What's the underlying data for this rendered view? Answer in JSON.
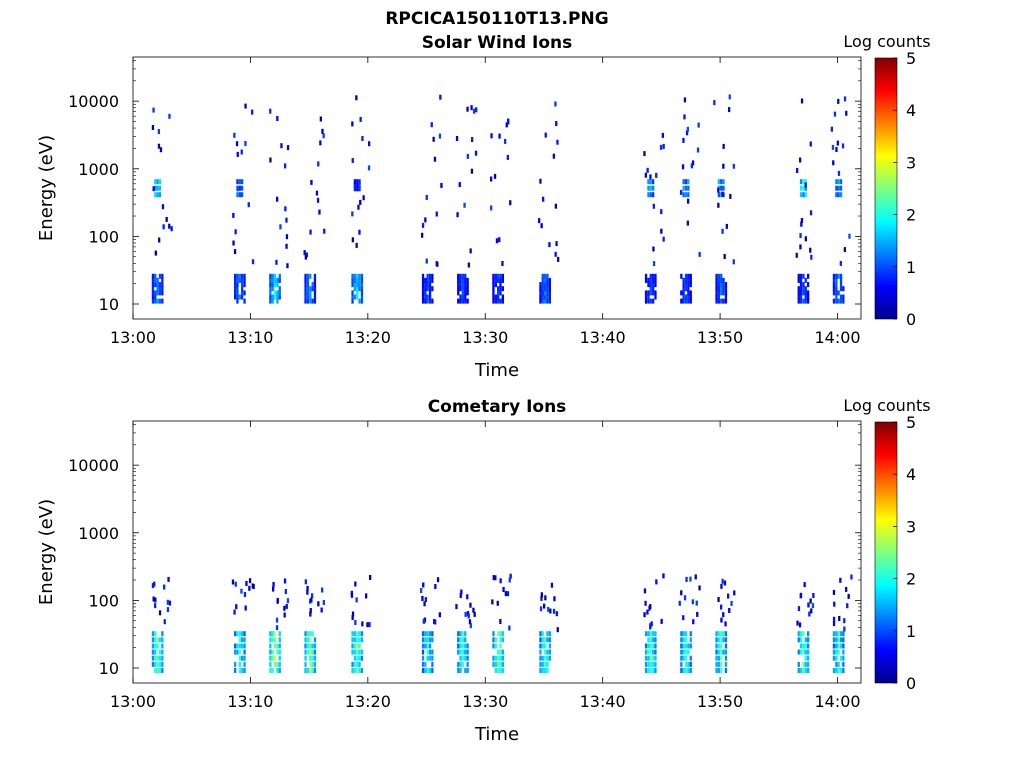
{
  "figure_title": "RPCICA150110T13.PNG",
  "chart_data": [
    {
      "type": "heatmap",
      "title": "Solar Wind Ions",
      "xlabel": "Time",
      "ylabel": "Energy (eV)",
      "yscale": "log",
      "ylim": [
        6,
        45000
      ],
      "xlim": [
        "13:00",
        "14:02"
      ],
      "x_ticks": [
        "13:00",
        "13:10",
        "13:20",
        "13:30",
        "13:40",
        "13:50",
        "14:00"
      ],
      "y_ticks": [
        "10",
        "100",
        "1000",
        "10000"
      ],
      "colorbar": {
        "label": "Log counts",
        "range": [
          0,
          5
        ],
        "ticks": [
          "0",
          "1",
          "2",
          "3",
          "4",
          "5"
        ]
      },
      "grid": false,
      "bursts": [
        {
          "t": "13:02",
          "core_eV": [
            12,
            28
          ],
          "peak_log": 1.3,
          "mid_eV": [
            450,
            700
          ],
          "mid_log": 1.8
        },
        {
          "t": "13:09",
          "core_eV": [
            12,
            28
          ],
          "peak_log": 1.2,
          "mid_eV": [
            450,
            700
          ],
          "mid_log": 1.3
        },
        {
          "t": "13:12",
          "core_eV": [
            12,
            28
          ],
          "peak_log": 1.8
        },
        {
          "t": "13:15",
          "core_eV": [
            12,
            28
          ],
          "peak_log": 1.3
        },
        {
          "t": "13:19",
          "core_eV": [
            12,
            28
          ],
          "peak_log": 1.7,
          "mid_eV": [
            550,
            700
          ],
          "mid_log": 1.0
        },
        {
          "t": "13:25",
          "core_eV": [
            12,
            28
          ],
          "peak_log": 1.0
        },
        {
          "t": "13:28",
          "core_eV": [
            12,
            28
          ],
          "peak_log": 1.0
        },
        {
          "t": "13:31",
          "core_eV": [
            12,
            28
          ],
          "peak_log": 1.0
        },
        {
          "t": "13:35",
          "core_eV": [
            12,
            28
          ],
          "peak_log": 1.2
        },
        {
          "t": "13:44",
          "core_eV": [
            12,
            28
          ],
          "peak_log": 1.0,
          "mid_eV": [
            450,
            700
          ],
          "mid_log": 1.6
        },
        {
          "t": "13:47",
          "core_eV": [
            12,
            28
          ],
          "peak_log": 1.0,
          "mid_eV": [
            450,
            700
          ],
          "mid_log": 1.5
        },
        {
          "t": "13:50",
          "core_eV": [
            12,
            28
          ],
          "peak_log": 1.1,
          "mid_eV": [
            450,
            700
          ],
          "mid_log": 1.6
        },
        {
          "t": "13:57",
          "core_eV": [
            12,
            28
          ],
          "peak_log": 1.0,
          "mid_eV": [
            450,
            700
          ],
          "mid_log": 2.0
        },
        {
          "t": "14:00",
          "core_eV": [
            12,
            28
          ],
          "peak_log": 1.3,
          "mid_eV": [
            450,
            700
          ],
          "mid_log": 1.7
        }
      ]
    },
    {
      "type": "heatmap",
      "title": "Cometary Ions",
      "xlabel": "Time",
      "ylabel": "Energy (eV)",
      "yscale": "log",
      "ylim": [
        6,
        45000
      ],
      "xlim": [
        "13:00",
        "14:02"
      ],
      "x_ticks": [
        "13:00",
        "13:10",
        "13:20",
        "13:30",
        "13:40",
        "13:50",
        "14:00"
      ],
      "y_ticks": [
        "10",
        "100",
        "1000",
        "10000"
      ],
      "colorbar": {
        "label": "Log counts",
        "range": [
          0,
          5
        ],
        "ticks": [
          "0",
          "1",
          "2",
          "3",
          "4",
          "5"
        ]
      },
      "grid": false,
      "bursts": [
        {
          "t": "13:02",
          "core_eV": [
            10,
            35
          ],
          "peak_log": 2.4
        },
        {
          "t": "13:09",
          "core_eV": [
            10,
            35
          ],
          "peak_log": 2.1
        },
        {
          "t": "13:12",
          "core_eV": [
            10,
            35
          ],
          "peak_log": 2.8
        },
        {
          "t": "13:15",
          "core_eV": [
            10,
            35
          ],
          "peak_log": 2.5
        },
        {
          "t": "13:19",
          "core_eV": [
            10,
            35
          ],
          "peak_log": 2.4
        },
        {
          "t": "13:25",
          "core_eV": [
            10,
            35
          ],
          "peak_log": 2.0
        },
        {
          "t": "13:28",
          "core_eV": [
            10,
            35
          ],
          "peak_log": 2.2
        },
        {
          "t": "13:31",
          "core_eV": [
            10,
            35
          ],
          "peak_log": 2.5
        },
        {
          "t": "13:35",
          "core_eV": [
            10,
            35
          ],
          "peak_log": 2.1
        },
        {
          "t": "13:44",
          "core_eV": [
            10,
            35
          ],
          "peak_log": 2.3
        },
        {
          "t": "13:47",
          "core_eV": [
            10,
            35
          ],
          "peak_log": 2.1
        },
        {
          "t": "13:50",
          "core_eV": [
            10,
            35
          ],
          "peak_log": 2.2
        },
        {
          "t": "13:57",
          "core_eV": [
            10,
            35
          ],
          "peak_log": 2.3
        },
        {
          "t": "14:00",
          "core_eV": [
            10,
            35
          ],
          "peak_log": 2.1
        }
      ]
    }
  ]
}
